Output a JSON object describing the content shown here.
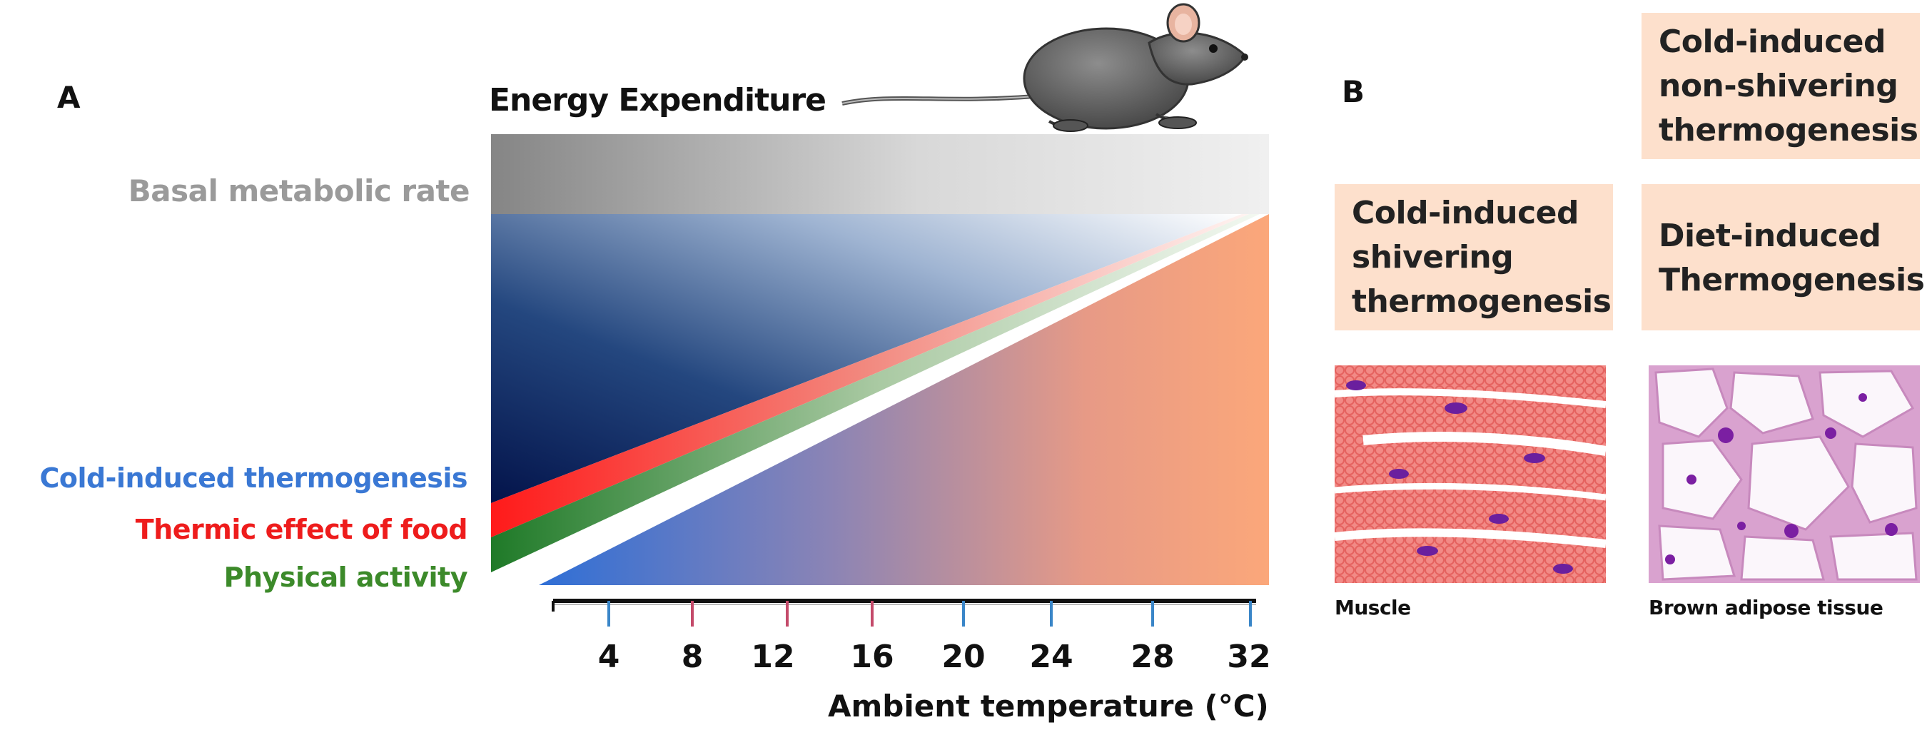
{
  "panel_a": {
    "letter": "A",
    "title": "Energy Expenditure",
    "categories": {
      "basal": "Basal metabolic rate",
      "cold": "Cold-induced thermogenesis",
      "food": "Thermic effect of food",
      "activity": "Physical activity"
    },
    "x_ticks": [
      "4",
      "8",
      "12",
      "16",
      "20",
      "24",
      "28",
      "32"
    ],
    "x_axis_title": "Ambient temperature (°C)",
    "colors": {
      "basal": "#8c8c8c",
      "cold": "#2f6fd6",
      "food": "#f0201a",
      "activity": "#2e8a2e",
      "warm": "#f9a77d",
      "cold_dark": "#0b2a66"
    }
  },
  "panel_b": {
    "letter": "B",
    "boxes": {
      "non_shivering": "Cold-induced non-shivering thermogenesis",
      "shivering": "Cold-induced shivering thermogenesis",
      "diet": "Diet-induced Thermogenesis"
    },
    "tissues": {
      "muscle": "Muscle",
      "bat": "Brown adipose tissue"
    },
    "box_color": "#fde0cc"
  }
}
